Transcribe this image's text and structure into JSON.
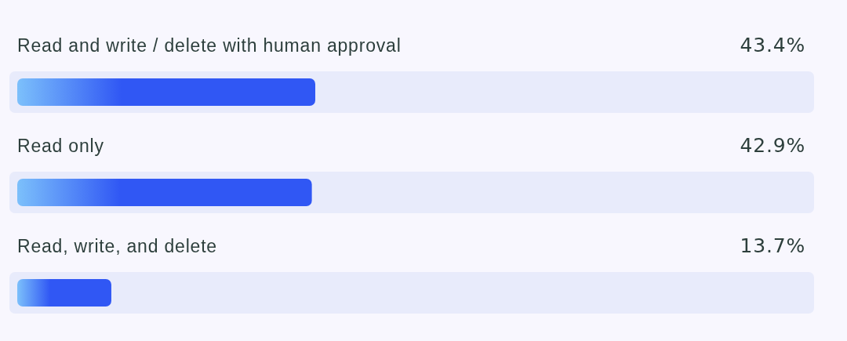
{
  "chart_data": {
    "type": "bar",
    "orientation": "horizontal",
    "categories": [
      "Read and write / delete with human approval",
      "Read only",
      "Read, write, and delete"
    ],
    "values": [
      43.4,
      42.9,
      13.7
    ],
    "value_labels": [
      "43.4%",
      "42.9%",
      "13.7%"
    ],
    "color": "#3057f4",
    "tick_labels": "y"
  }
}
